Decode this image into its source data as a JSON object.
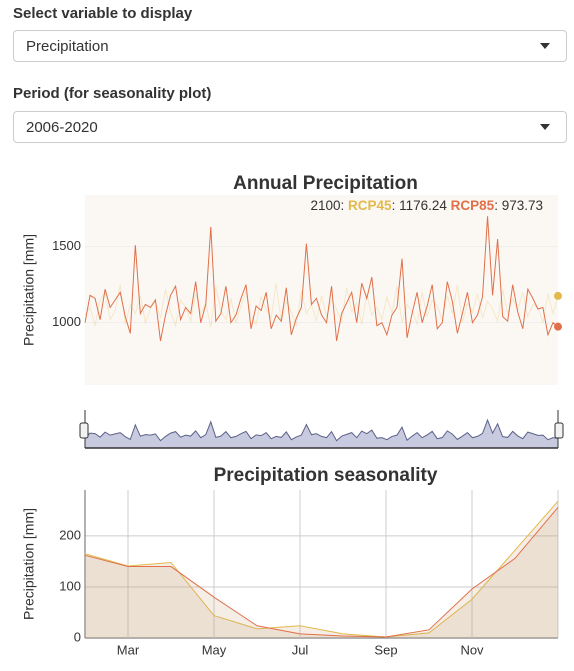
{
  "controls": [
    {
      "label": "Select variable to display",
      "value": "Precipitation"
    },
    {
      "label": "Period (for seasonality plot)",
      "value": "2006-2020"
    }
  ],
  "chart_data": [
    {
      "type": "line",
      "title": "Annual Precipitation",
      "y_label": "Precipitation [mm]",
      "ylim": [
        590,
        1840
      ],
      "yticks": [
        1000,
        1500
      ],
      "grid": true,
      "tooltip": {
        "x_label": "2100"
      },
      "series": [
        {
          "name": "RCP45",
          "color": "#e3b94a",
          "values": [
            1050,
            1100,
            980,
            1150,
            1200,
            1020,
            1080,
            1250,
            990,
            1120,
            1060,
            1180,
            1000,
            1090,
            1140,
            1030,
            1220,
            1070,
            980,
            1150,
            1100,
            1010,
            1190,
            1060,
            1130,
            970,
            1240,
            1080,
            1020,
            1160,
            1000,
            1110,
            1200,
            1050,
            990,
            1170,
            1090,
            1030,
            1260,
            1000,
            1140,
            1070,
            980,
            1210,
            1060,
            1120,
            1010,
            1180,
            1040,
            1150,
            1090,
            1000,
            1230,
            1070,
            1130,
            990,
            1190,
            1050,
            1100,
            1020,
            1170,
            1060,
            1240,
            1000,
            1120,
            1080,
            990,
            1200,
            1040,
            1150,
            1110,
            1020,
            1180,
            1060,
            1250,
            1000,
            1130,
            1070,
            1190,
            1030,
            1140,
            1090,
            1010,
            1220,
            1060,
            1160,
            1080,
            1200,
            1040,
            1120,
            1100,
            1000,
            1190,
            1060,
            1176.24
          ]
        },
        {
          "name": "RCP85",
          "color": "#e0704a",
          "values": [
            1000,
            1180,
            1160,
            1020,
            1220,
            1100,
            1150,
            1200,
            1040,
            930,
            1510,
            1060,
            1120,
            1100,
            1150,
            880,
            1050,
            1180,
            1240,
            1020,
            1100,
            1060,
            1270,
            1000,
            1120,
            1630,
            1010,
            1060,
            1240,
            1000,
            1050,
            1160,
            1250,
            960,
            1110,
            1080,
            1200,
            960,
            1050,
            1010,
            1230,
            920,
            1030,
            1100,
            1520,
            1120,
            1160,
            1050,
            1000,
            1240,
            880,
            1060,
            1130,
            1200,
            1000,
            1260,
            1160,
            1300,
            980,
            1000,
            920,
            1050,
            1100,
            1420,
            900,
            1060,
            1200,
            1000,
            1110,
            1250,
            960,
            1000,
            1270,
            1140,
            930,
            1060,
            1200,
            1000,
            1050,
            1170,
            1700,
            1180,
            1550,
            1040,
            1010,
            1250,
            1070,
            960,
            1220,
            1160,
            1090,
            1100,
            920,
            1000,
            973.73
          ]
        }
      ]
    },
    {
      "type": "line",
      "title": "Precipitation seasonality",
      "y_label": "Precipitation [mm]",
      "categories": [
        null,
        "Mar",
        null,
        "May",
        null,
        "Jul",
        null,
        "Sep",
        null,
        "Nov",
        null,
        null
      ],
      "ylim": [
        0,
        290
      ],
      "yticks": [
        0,
        100,
        200
      ],
      "grid": true,
      "series": [
        {
          "color": "#e3b94a",
          "values": [
            165,
            141,
            148,
            44,
            18,
            24,
            8,
            2,
            10,
            76,
            172,
            268
          ]
        },
        {
          "color": "#e0704a",
          "values": [
            162,
            140,
            140,
            80,
            24,
            8,
            4,
            2,
            16,
            96,
            156,
            256
          ]
        }
      ]
    }
  ]
}
